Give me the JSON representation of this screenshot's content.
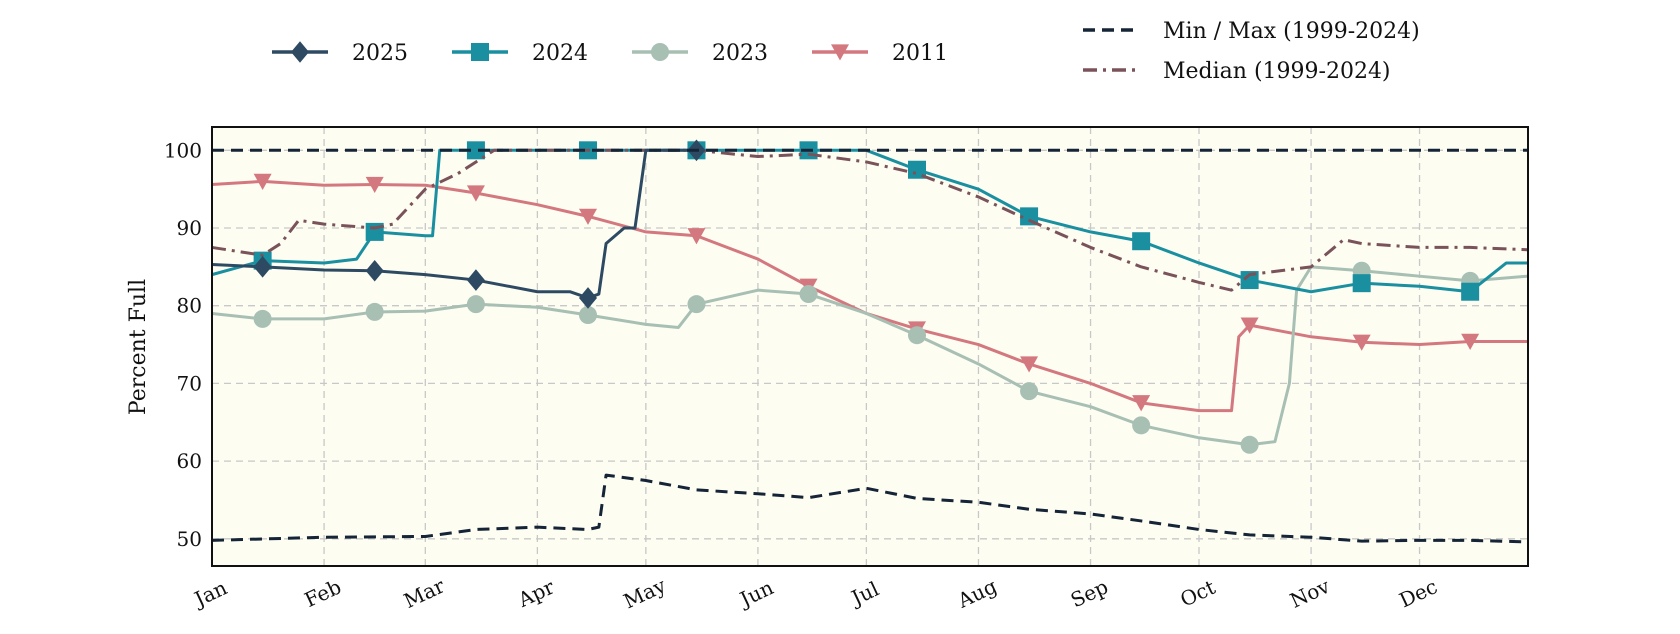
{
  "chart_data": {
    "type": "line",
    "title": "",
    "xlabel": "",
    "ylabel": "Percent Full",
    "ylim": [
      46.5,
      103
    ],
    "xlim": [
      "Jan 1",
      "Dec 31"
    ],
    "grid": true,
    "legend_placement": "top",
    "x_ticks": [
      "Jan",
      "Feb",
      "Mar",
      "Apr",
      "May",
      "Jun",
      "Jul",
      "Aug",
      "Sep",
      "Oct",
      "Nov",
      "Dec"
    ],
    "y_ticks": [
      50,
      60,
      70,
      80,
      90,
      100
    ],
    "series": [
      {
        "name": "2025",
        "color": "#2e4a63",
        "marker": "diamond",
        "dash": "solid",
        "x": [
          "Jan 1",
          "Jan 15",
          "Feb 1",
          "Feb 15",
          "Mar 1",
          "Mar 15",
          "Apr 1",
          "Apr 10",
          "Apr 15",
          "Apr 18",
          "Apr 20",
          "Apr 25",
          "Apr 28",
          "May 1",
          "May 15"
        ],
        "y": [
          85.3,
          85.0,
          84.6,
          84.5,
          84.0,
          83.3,
          81.8,
          81.8,
          81.0,
          81.5,
          88,
          90,
          90,
          100,
          100
        ]
      },
      {
        "name": "2024",
        "color": "#1a8fa0",
        "marker": "square",
        "dash": "solid",
        "x": [
          "Jan 1",
          "Jan 15",
          "Feb 1",
          "Feb 10",
          "Feb 15",
          "Mar 1",
          "Mar 3",
          "Mar 5",
          "Mar 15",
          "Apr 15",
          "May 15",
          "Jun 15",
          "Jul 1",
          "Jul 15",
          "Aug 1",
          "Aug 15",
          "Sep 1",
          "Sep 15",
          "Oct 1",
          "Oct 15",
          "Nov 1",
          "Nov 15",
          "Dec 1",
          "Dec 15",
          "Dec 25",
          "Dec 31"
        ],
        "y": [
          84.0,
          85.8,
          85.5,
          86.0,
          89.5,
          89.0,
          89.0,
          100,
          100,
          100,
          100,
          100,
          100,
          97.5,
          95,
          91.5,
          89.5,
          88.3,
          85.5,
          83.3,
          81.8,
          82.9,
          82.5,
          81.8,
          85.5,
          85.5
        ]
      },
      {
        "name": "2023",
        "color": "#a8bfb4",
        "marker": "circle",
        "dash": "solid",
        "x": [
          "Jan 1",
          "Jan 15",
          "Feb 1",
          "Feb 15",
          "Mar 1",
          "Mar 15",
          "Apr 1",
          "Apr 15",
          "May 1",
          "May 10",
          "May 15",
          "Jun 1",
          "Jun 15",
          "Jul 1",
          "Jul 15",
          "Aug 1",
          "Aug 15",
          "Sep 1",
          "Sep 15",
          "Oct 1",
          "Oct 15",
          "Oct 22",
          "Oct 26",
          "Oct 28",
          "Nov 1",
          "Nov 15",
          "Dec 1",
          "Dec 15",
          "Dec 31"
        ],
        "y": [
          79.0,
          78.3,
          78.3,
          79.2,
          79.3,
          80.2,
          79.8,
          78.8,
          77.6,
          77.2,
          80.2,
          82.0,
          81.5,
          79.0,
          76.2,
          72.5,
          69.0,
          67.0,
          64.6,
          63.0,
          62.1,
          62.5,
          70,
          82,
          85.0,
          84.5,
          83.8,
          83.2,
          83.8
        ]
      },
      {
        "name": "2011",
        "color": "#d4787f",
        "marker": "triangle-down",
        "dash": "solid",
        "x": [
          "Jan 1",
          "Jan 15",
          "Feb 1",
          "Feb 15",
          "Mar 1",
          "Mar 15",
          "Apr 1",
          "Apr 15",
          "May 1",
          "May 15",
          "Jun 1",
          "Jun 15",
          "Jul 1",
          "Jul 15",
          "Aug 1",
          "Aug 15",
          "Sep 1",
          "Sep 15",
          "Oct 1",
          "Oct 10",
          "Oct 12",
          "Oct 15",
          "Nov 1",
          "Nov 15",
          "Dec 1",
          "Dec 15",
          "Dec 31"
        ],
        "y": [
          95.6,
          96.0,
          95.5,
          95.6,
          95.5,
          94.5,
          93.0,
          91.5,
          89.5,
          89.0,
          86,
          82.5,
          79,
          77.0,
          75,
          72.5,
          70,
          67.5,
          66.5,
          66.5,
          76,
          77.5,
          76,
          75.3,
          75,
          75.4,
          75.4
        ]
      },
      {
        "name": "Min / Max (1999-2024)",
        "color": "#152436",
        "marker": "none",
        "dash": "dashed",
        "x": [
          "Jan 1",
          "Feb 1",
          "Mar 1",
          "Mar 15",
          "Apr 1",
          "Apr 15",
          "Apr 18",
          "Apr 20",
          "May 1",
          "May 15",
          "Jun 1",
          "Jun 15",
          "Jul 1",
          "Jul 15",
          "Aug 1",
          "Aug 15",
          "Sep 1",
          "Sep 15",
          "Oct 1",
          "Oct 15",
          "Nov 1",
          "Nov 15",
          "Dec 1",
          "Dec 15",
          "Dec 31"
        ],
        "y": [
          49.8,
          50.2,
          50.3,
          51.2,
          51.5,
          51.2,
          51.5,
          58.2,
          57.5,
          56.3,
          55.8,
          55.3,
          56.5,
          55.2,
          54.7,
          53.8,
          53.2,
          52.3,
          51.2,
          50.5,
          50.2,
          49.7,
          49.8,
          49.8,
          49.6
        ],
        "max_y": 100
      },
      {
        "name": "Median (1999-2024)",
        "color": "#7a525a",
        "marker": "none",
        "dash": "dash-dot",
        "x": [
          "Jan 1",
          "Jan 15",
          "Jan 20",
          "Jan 25",
          "Feb 1",
          "Feb 15",
          "Feb 20",
          "Mar 1",
          "Mar 10",
          "Mar 15",
          "Mar 20",
          "Apr 1",
          "Apr 15",
          "May 1",
          "May 15",
          "Jun 1",
          "Jun 15",
          "Jul 1",
          "Jul 15",
          "Aug 1",
          "Aug 15",
          "Sep 1",
          "Sep 15",
          "Oct 1",
          "Oct 10",
          "Oct 15",
          "Nov 1",
          "Nov 10",
          "Nov 15",
          "Dec 1",
          "Dec 15",
          "Dec 31"
        ],
        "y": [
          87.5,
          86.5,
          88,
          91,
          90.5,
          90.0,
          90.5,
          95,
          97,
          98.5,
          100,
          100,
          100,
          100,
          100,
          99.2,
          99.5,
          98.5,
          97.0,
          94,
          91.0,
          87.5,
          85,
          83,
          82,
          84,
          85,
          88.5,
          88,
          87.5,
          87.5,
          87.2
        ]
      }
    ]
  }
}
